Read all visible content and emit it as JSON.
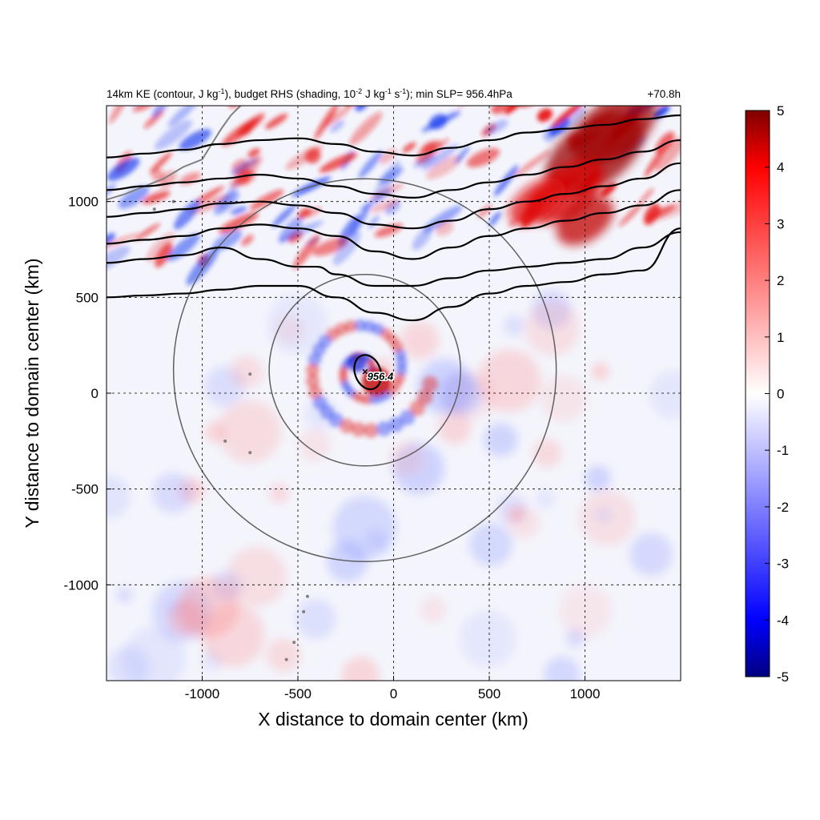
{
  "chart_data": {
    "type": "heatmap",
    "title_main": "14km KE (contour, J kg",
    "title_exp1": "-1",
    "title_mid": "), budget RHS (shading, 10",
    "title_exp2": "-2",
    "title_mid2": " J kg",
    "title_exp3": "-1",
    "title_mid3": " s",
    "title_exp4": "-1",
    "title_end": "); min SLP= 956.4hPa",
    "time_label": "+70.8h",
    "xlabel": "X distance to domain center (km)",
    "ylabel": "Y distance to domain center (km)",
    "xlim": [
      -1500,
      1500
    ],
    "ylim": [
      -1500,
      1500
    ],
    "xticks": [
      -1000,
      -500,
      0,
      500,
      1000
    ],
    "yticks": [
      -1000,
      -500,
      0,
      500,
      1000
    ],
    "xtick_labels": [
      "-1000",
      "-500",
      "0",
      "500",
      "1000"
    ],
    "ytick_labels": [
      "-1000",
      "-500",
      "0",
      "500",
      "1000"
    ],
    "grid": "dashed",
    "colorbar": {
      "min": -5,
      "max": 5,
      "ticks": [
        5,
        4,
        3,
        2,
        1,
        0,
        -1,
        -2,
        -3,
        -4,
        -5
      ],
      "tick_labels": [
        "5",
        "4",
        "3",
        "2",
        "1",
        "0",
        "-1",
        "-2",
        "-3",
        "-4",
        "-5"
      ],
      "colormap": "blue-white-red",
      "colors": [
        "#00007f",
        "#0000ff",
        "#ffffff",
        "#ff0000",
        "#7f0000"
      ]
    },
    "storm_center": {
      "x": -150,
      "y": 120,
      "marker": "×",
      "label": "956.4",
      "min_slp_hpa": 956.4
    },
    "range_rings_km": [
      500,
      1000
    ],
    "ke_contours_approx": [
      {
        "x": [
          -1500,
          -1300,
          -1100,
          -900,
          -700,
          -500,
          -300,
          -100,
          100,
          300,
          500,
          700,
          900,
          1100,
          1300,
          1500
        ],
        "y": [
          500,
          510,
          520,
          540,
          560,
          560,
          500,
          420,
          380,
          450,
          520,
          560,
          580,
          620,
          640,
          860
        ]
      },
      {
        "x": [
          -1500,
          -1300,
          -1100,
          -900,
          -700,
          -500,
          -400,
          -300,
          -100,
          100,
          300,
          500,
          700,
          900,
          1100,
          1300,
          1500
        ],
        "y": [
          680,
          700,
          720,
          760,
          700,
          660,
          660,
          620,
          560,
          560,
          600,
          640,
          660,
          680,
          700,
          760,
          840
        ]
      },
      {
        "x": [
          -1500,
          -1300,
          -1100,
          -900,
          -700,
          -500,
          -300,
          -100,
          100,
          300,
          500,
          700,
          900,
          1100,
          1300,
          1500
        ],
        "y": [
          780,
          800,
          820,
          860,
          880,
          860,
          820,
          740,
          700,
          760,
          820,
          860,
          900,
          940,
          980,
          1060
        ]
      },
      {
        "x": [
          -1500,
          -1300,
          -1100,
          -900,
          -700,
          -500,
          -300,
          -100,
          100,
          300,
          500,
          700,
          900,
          1100,
          1300,
          1500
        ],
        "y": [
          920,
          940,
          960,
          990,
          1000,
          980,
          940,
          880,
          860,
          900,
          960,
          1000,
          1040,
          1080,
          1120,
          1200
        ]
      },
      {
        "x": [
          -1500,
          -1300,
          -1100,
          -900,
          -700,
          -500,
          -300,
          -100,
          100,
          300,
          500,
          700,
          900,
          1100,
          1300,
          1500
        ],
        "y": [
          1060,
          1080,
          1100,
          1120,
          1140,
          1120,
          1080,
          1040,
          1020,
          1060,
          1100,
          1140,
          1180,
          1220,
          1260,
          1320
        ]
      },
      {
        "x": [
          -1500,
          -1300,
          -1100,
          -900,
          -700,
          -500,
          -300,
          -100,
          100,
          300,
          500,
          700,
          900,
          1100,
          1300,
          1500
        ],
        "y": [
          1230,
          1250,
          1270,
          1300,
          1320,
          1330,
          1300,
          1260,
          1240,
          1280,
          1320,
          1360,
          1380,
          1400,
          1430,
          1450
        ]
      }
    ]
  }
}
